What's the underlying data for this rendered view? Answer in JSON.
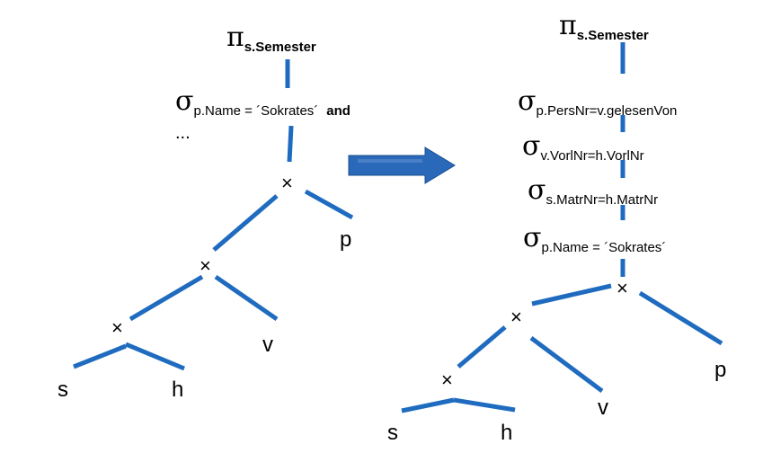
{
  "colors": {
    "edge": "#1f6bbf",
    "arrow": "#2a69b9"
  },
  "left_tree": {
    "projection": {
      "symbol": "π",
      "subscript": "s.Semester"
    },
    "selection": {
      "symbol": "σ",
      "subscript": "p.Name = ´Sokrates´",
      "and_label": "and"
    },
    "ellipsis": "...",
    "cross_symbol": "×",
    "leaves": {
      "s": "s",
      "h": "h",
      "v": "v",
      "p": "p"
    }
  },
  "right_tree": {
    "projection": {
      "symbol": "π",
      "subscript": "s.Semester"
    },
    "selections": [
      {
        "symbol": "σ",
        "subscript": "p.PersNr=v.gelesenVon"
      },
      {
        "symbol": "σ",
        "subscript": "v.VorlNr=h.VorlNr"
      },
      {
        "symbol": "σ",
        "subscript": "s.MatrNr=h.MatrNr"
      },
      {
        "symbol": "σ",
        "subscript": "p.Name = ´Sokrates´"
      }
    ],
    "cross_symbol": "×",
    "leaves": {
      "s": "s",
      "h": "h",
      "v": "v",
      "p": "p"
    }
  }
}
